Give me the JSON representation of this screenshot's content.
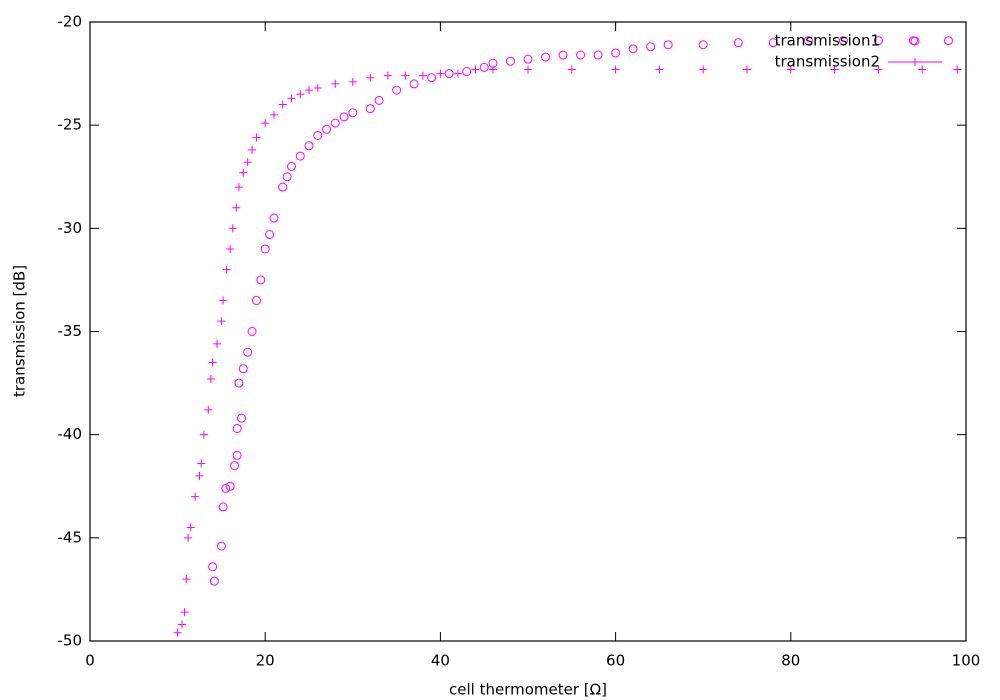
{
  "chart_data": {
    "type": "scatter",
    "x_label": "cell thermometer [Ω]",
    "y_label": "transmission [dB]",
    "xlim": [
      0,
      100
    ],
    "xticks": [
      0,
      20,
      40,
      60,
      80,
      100
    ],
    "ylim": [
      -50,
      -20
    ],
    "yticks": [
      -50,
      -45,
      -40,
      -35,
      -30,
      -25,
      -20
    ],
    "legend": "top right",
    "series": [
      {
        "name": "transmission1",
        "color": "#ff00ff",
        "marker": "circle",
        "x": [
          14.2,
          14,
          15,
          15.2,
          15.5,
          16,
          16.5,
          16.8,
          16.8,
          17.3,
          17,
          17.5,
          18,
          18.5,
          19,
          19.5,
          20,
          20.5,
          21,
          22,
          22.5,
          23,
          24,
          25,
          26,
          27,
          28,
          29,
          30,
          32,
          33,
          35,
          37,
          39,
          41,
          43,
          45,
          46,
          48,
          50,
          52,
          54,
          56,
          58,
          60,
          62,
          64,
          66,
          70,
          74,
          78,
          82,
          86,
          90,
          94,
          98
        ],
        "values": [
          -47.1,
          -46.4,
          -45.4,
          -43.5,
          -42.6,
          -42.5,
          -41.5,
          -41,
          -39.7,
          -39.2,
          -37.5,
          -36.8,
          -36,
          -35,
          -33.5,
          -32.5,
          -31,
          -30.3,
          -29.5,
          -28,
          -27.5,
          -27,
          -26.5,
          -26,
          -25.5,
          -25.2,
          -24.9,
          -24.6,
          -24.4,
          -24.2,
          -23.8,
          -23.3,
          -23,
          -22.7,
          -22.5,
          -22.4,
          -22.2,
          -22,
          -21.9,
          -21.8,
          -21.7,
          -21.6,
          -21.6,
          -21.6,
          -21.5,
          -21.3,
          -21.2,
          -21.1,
          -21.1,
          -21,
          -21,
          -20.9,
          -20.9,
          -20.9,
          -20.9,
          -20.9
        ]
      },
      {
        "name": "transmission2",
        "color": "#ff00ff",
        "marker": "plus",
        "x": [
          10,
          10.5,
          10.8,
          11,
          11.2,
          11.5,
          12,
          12.5,
          12.7,
          13,
          13.5,
          13.8,
          14,
          14.5,
          15,
          15.2,
          15.6,
          16,
          16.3,
          16.7,
          17,
          17.5,
          18,
          18.5,
          19,
          20,
          21,
          22,
          23,
          24,
          25,
          26,
          28,
          30,
          32,
          34,
          36,
          38,
          40,
          42,
          44,
          46,
          50,
          55,
          60,
          65,
          70,
          75,
          80,
          85,
          90,
          95,
          99
        ],
        "values": [
          -49.6,
          -49.2,
          -48.6,
          -47,
          -45,
          -44.5,
          -43,
          -42,
          -41.4,
          -40,
          -38.8,
          -37.3,
          -36.5,
          -35.6,
          -34.5,
          -33.5,
          -32,
          -31,
          -30,
          -29,
          -28,
          -27.3,
          -26.8,
          -26.2,
          -25.6,
          -24.9,
          -24.5,
          -24,
          -23.7,
          -23.5,
          -23.3,
          -23.2,
          -23,
          -22.9,
          -22.7,
          -22.6,
          -22.6,
          -22.6,
          -22.5,
          -22.5,
          -22.3,
          -22.3,
          -22.3,
          -22.3,
          -22.3,
          -22.3,
          -22.3,
          -22.3,
          -22.3,
          -22.3,
          -22.3,
          -22.3,
          -22.3
        ]
      }
    ]
  }
}
